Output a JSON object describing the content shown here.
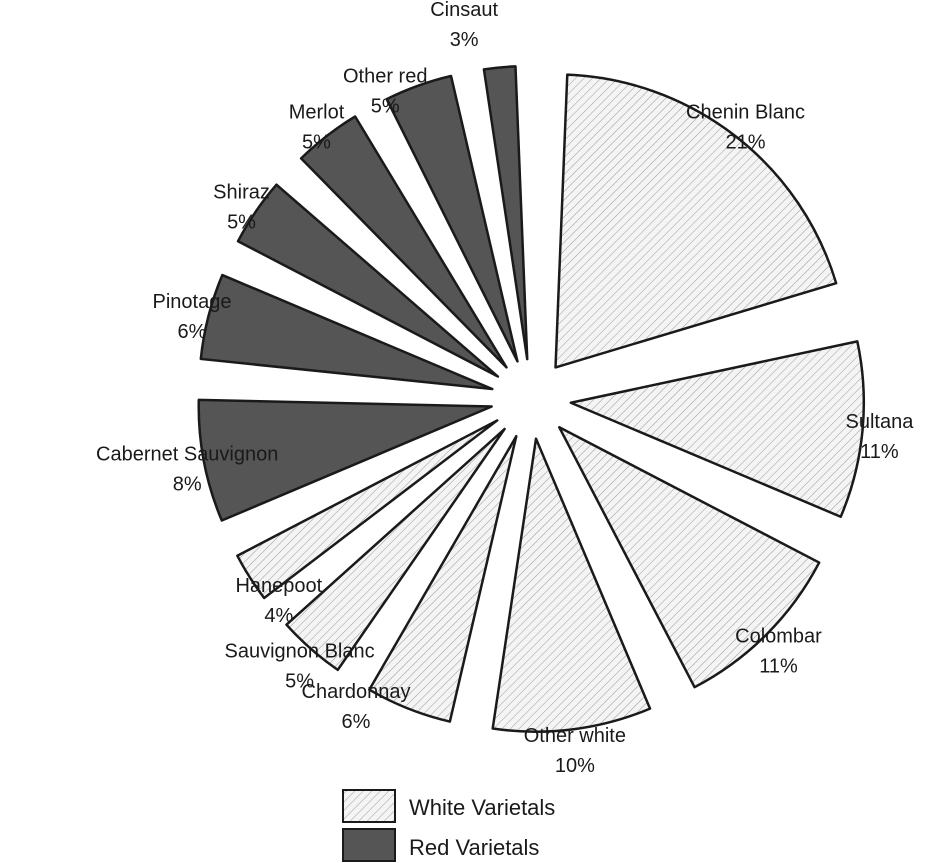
{
  "chart_data": {
    "type": "pie",
    "title": "",
    "exploded": true,
    "slices": [
      {
        "label": "Chenin Blanc",
        "percent_label": "21%",
        "value": 21,
        "group": "white"
      },
      {
        "label": "Sultana",
        "percent_label": "11%",
        "value": 11,
        "group": "white"
      },
      {
        "label": "Colombar",
        "percent_label": "11%",
        "value": 11,
        "group": "white"
      },
      {
        "label": "Other white",
        "percent_label": "10%",
        "value": 10,
        "group": "white"
      },
      {
        "label": "Chardonnay",
        "percent_label": "6%",
        "value": 6,
        "group": "white"
      },
      {
        "label": "Sauvignon Blanc",
        "percent_label": "5%",
        "value": 5,
        "group": "white"
      },
      {
        "label": "Hanepoot",
        "percent_label": "4%",
        "value": 4,
        "group": "white"
      },
      {
        "label": "Cabernet Sauvignon",
        "percent_label": "8%",
        "value": 8,
        "group": "red"
      },
      {
        "label": "Pinotage",
        "percent_label": "6%",
        "value": 6,
        "group": "red"
      },
      {
        "label": "Shiraz",
        "percent_label": "5%",
        "value": 5,
        "group": "red"
      },
      {
        "label": "Merlot",
        "percent_label": "5%",
        "value": 5,
        "group": "red"
      },
      {
        "label": "Other red",
        "percent_label": "5%",
        "value": 5,
        "group": "red"
      },
      {
        "label": "Cinsaut",
        "percent_label": "3%",
        "value": 3,
        "group": "red"
      }
    ],
    "legend": {
      "placement": "bottom-center",
      "items": [
        {
          "group": "white",
          "label": "White Varietals",
          "fill": "hatched",
          "color": "#f2f2f2"
        },
        {
          "group": "red",
          "label": "Red Varietals",
          "color": "#555555"
        }
      ]
    }
  }
}
